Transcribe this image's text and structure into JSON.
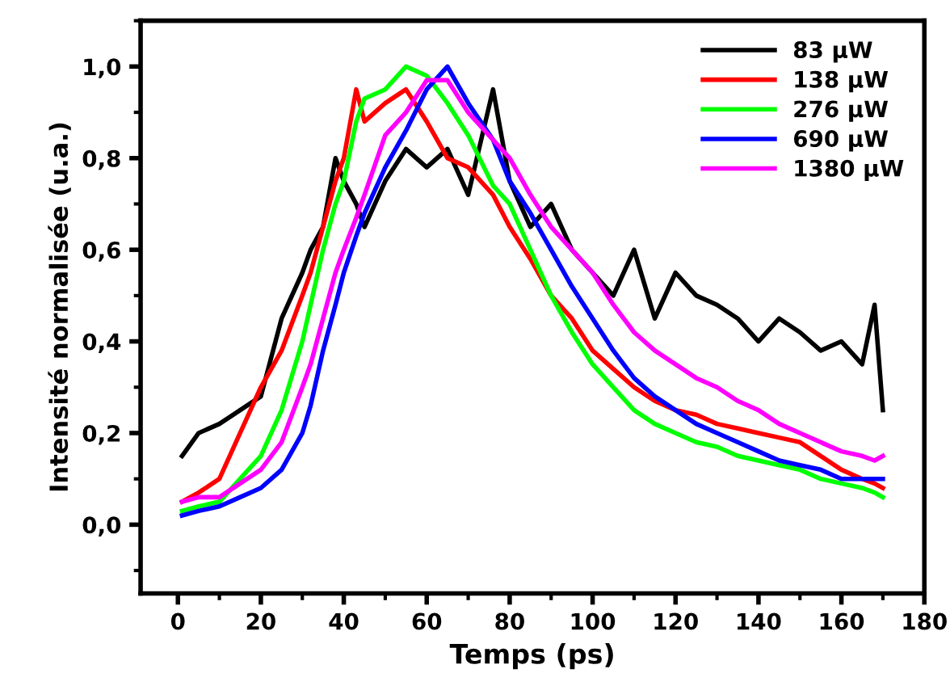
{
  "chart_data": {
    "type": "line",
    "xlabel": "Temps (ps)",
    "ylabel": "Intensité normalisée (u.a.)",
    "xlim": [
      -9,
      180
    ],
    "xticks": [
      0,
      20,
      40,
      60,
      80,
      100,
      120,
      140,
      160,
      180
    ],
    "ylim": [
      -0.15,
      1.1
    ],
    "yticks": [
      {
        "value": 0,
        "label": "0,0"
      },
      {
        "value": 0.2,
        "label": "0,2"
      },
      {
        "value": 0.4,
        "label": "0,4"
      },
      {
        "value": 0.6,
        "label": "0,6"
      },
      {
        "value": 0.8,
        "label": "0,8"
      },
      {
        "value": 1.0,
        "label": "1,0"
      }
    ],
    "grid": false,
    "legend": "top right",
    "marker": "none",
    "line_style": "solid",
    "x": [
      1,
      5,
      10,
      15,
      20,
      25,
      30,
      32,
      35,
      38,
      40,
      43,
      45,
      50,
      55,
      60,
      65,
      70,
      76,
      80,
      85,
      90,
      95,
      100,
      105,
      110,
      115,
      120,
      125,
      130,
      135,
      140,
      145,
      150,
      155,
      160,
      165,
      168,
      170
    ],
    "series": [
      {
        "name": "83 µW",
        "color": "#000000",
        "values": [
          0.15,
          0.2,
          0.22,
          0.25,
          0.28,
          0.45,
          0.55,
          0.6,
          0.65,
          0.8,
          0.75,
          0.7,
          0.65,
          0.75,
          0.82,
          0.78,
          0.82,
          0.72,
          0.95,
          0.75,
          0.65,
          0.7,
          0.6,
          0.55,
          0.5,
          0.6,
          0.45,
          0.55,
          0.5,
          0.48,
          0.45,
          0.4,
          0.45,
          0.42,
          0.38,
          0.4,
          0.35,
          0.48,
          0.25
        ]
      },
      {
        "name": "138 µW",
        "color": "#ff0000",
        "values": [
          0.05,
          0.07,
          0.1,
          0.2,
          0.3,
          0.38,
          0.5,
          0.55,
          0.65,
          0.75,
          0.8,
          0.95,
          0.88,
          0.92,
          0.95,
          0.88,
          0.8,
          0.78,
          0.72,
          0.65,
          0.58,
          0.5,
          0.45,
          0.38,
          0.34,
          0.3,
          0.27,
          0.25,
          0.24,
          0.22,
          0.21,
          0.2,
          0.19,
          0.18,
          0.15,
          0.12,
          0.1,
          0.09,
          0.08
        ]
      },
      {
        "name": "276 µW",
        "color": "#00ff00",
        "values": [
          0.03,
          0.04,
          0.05,
          0.1,
          0.15,
          0.25,
          0.4,
          0.48,
          0.6,
          0.7,
          0.75,
          0.88,
          0.93,
          0.95,
          1.0,
          0.98,
          0.92,
          0.85,
          0.74,
          0.7,
          0.6,
          0.5,
          0.42,
          0.35,
          0.3,
          0.25,
          0.22,
          0.2,
          0.18,
          0.17,
          0.15,
          0.14,
          0.13,
          0.12,
          0.1,
          0.09,
          0.08,
          0.07,
          0.06
        ]
      },
      {
        "name": "690 µW",
        "color": "#0000ff",
        "values": [
          0.02,
          0.03,
          0.04,
          0.06,
          0.08,
          0.12,
          0.2,
          0.26,
          0.38,
          0.48,
          0.55,
          0.63,
          0.68,
          0.78,
          0.86,
          0.95,
          1.0,
          0.92,
          0.84,
          0.75,
          0.68,
          0.6,
          0.52,
          0.45,
          0.38,
          0.32,
          0.28,
          0.25,
          0.22,
          0.2,
          0.18,
          0.16,
          0.14,
          0.13,
          0.12,
          0.1,
          0.1,
          0.1,
          0.1
        ]
      },
      {
        "name": "1380 µW",
        "color": "#ff00ff",
        "values": [
          0.05,
          0.06,
          0.06,
          0.09,
          0.12,
          0.18,
          0.3,
          0.35,
          0.45,
          0.55,
          0.6,
          0.67,
          0.72,
          0.85,
          0.9,
          0.97,
          0.97,
          0.9,
          0.84,
          0.8,
          0.72,
          0.65,
          0.6,
          0.55,
          0.48,
          0.42,
          0.38,
          0.35,
          0.32,
          0.3,
          0.27,
          0.25,
          0.22,
          0.2,
          0.18,
          0.16,
          0.15,
          0.14,
          0.15
        ]
      }
    ]
  }
}
